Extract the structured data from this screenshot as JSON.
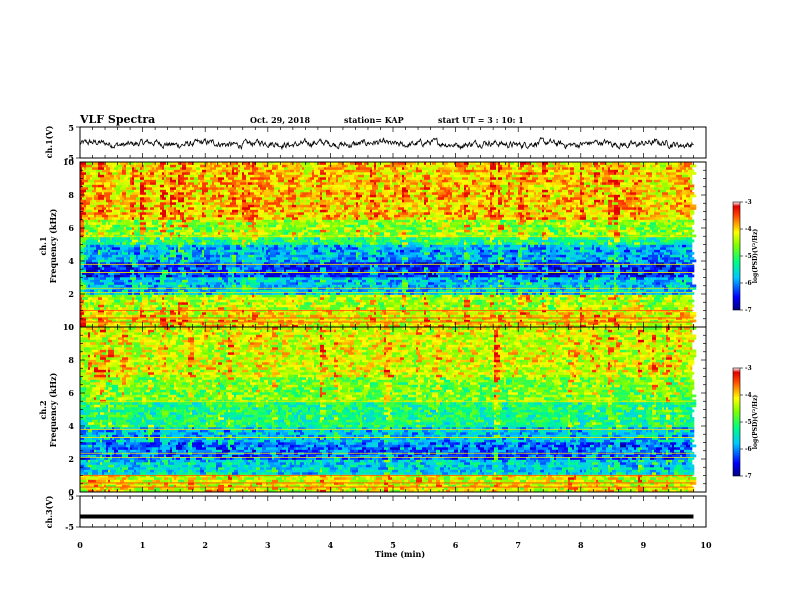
{
  "header": {
    "title": "VLF Spectra",
    "date": "Oct. 29, 2018",
    "station": "station= KAP",
    "start": "start  UT =   3  : 10: 1"
  },
  "chart_data": [
    {
      "type": "line",
      "panel": "ch1-waveform",
      "ylabel": "ch.1(V)",
      "yticks": [
        "5",
        "-5"
      ],
      "ylim": [
        -5,
        5
      ],
      "xlim": [
        0,
        10
      ],
      "note": "noisy waveform, amplitude roughly -3 to 2 V"
    },
    {
      "type": "heatmap",
      "panel": "ch1-spectrogram",
      "ylabel": "ch.1\nFrequency (kHz)",
      "ylabel_line1": "ch.1",
      "ylabel_line2": "Frequency (kHz)",
      "yticks": [
        "0",
        "2",
        "4",
        "6",
        "8",
        "10"
      ],
      "ylim": [
        0,
        10
      ],
      "xlim": [
        0,
        9.8
      ],
      "colorbar": {
        "label": "log(PSD)(V²/Hz)",
        "ticks": [
          "-3",
          "-4",
          "-5",
          "-6",
          "-7"
        ],
        "range": [
          -7,
          -3
        ]
      },
      "bands": [
        {
          "from": 0,
          "to": 1,
          "level": -4.2
        },
        {
          "from": 1,
          "to": 2,
          "level": -4.5
        },
        {
          "from": 2,
          "to": 3,
          "level": -5.8
        },
        {
          "from": 3,
          "to": 4,
          "level": -6.4
        },
        {
          "from": 4,
          "to": 5,
          "level": -5.9
        },
        {
          "from": 5,
          "to": 5.5,
          "level": -5.2
        },
        {
          "from": 5.5,
          "to": 6.5,
          "level": -4.6
        },
        {
          "from": 6.5,
          "to": 10,
          "level": -4.0
        }
      ]
    },
    {
      "type": "heatmap",
      "panel": "ch2-spectrogram",
      "ylabel_line1": "ch.2",
      "ylabel_line2": "Frequency (kHz)",
      "yticks": [
        "0",
        "2",
        "4",
        "6",
        "8",
        "10"
      ],
      "ylim": [
        0,
        10
      ],
      "xlim": [
        0,
        9.8
      ],
      "colorbar": {
        "label": "log(PSD)(V²/Hz)",
        "ticks": [
          "-3",
          "-4",
          "-5",
          "-6",
          "-7"
        ],
        "range": [
          -7,
          -3
        ]
      },
      "bands": [
        {
          "from": 0,
          "to": 1,
          "level": -4.3
        },
        {
          "from": 1,
          "to": 2,
          "level": -5.7
        },
        {
          "from": 2,
          "to": 3,
          "level": -6.2
        },
        {
          "from": 3,
          "to": 4,
          "level": -5.8
        },
        {
          "from": 4,
          "to": 5.5,
          "level": -5.2
        },
        {
          "from": 5.5,
          "to": 7,
          "level": -4.7
        },
        {
          "from": 7,
          "to": 10,
          "level": -4.3
        }
      ]
    },
    {
      "type": "line",
      "panel": "ch3-waveform",
      "ylabel": "ch.3(V)",
      "yticks": [
        "5",
        "-5"
      ],
      "ylim": [
        -5,
        5
      ],
      "xlim": [
        0,
        10
      ],
      "x": [
        0,
        9.8
      ],
      "y": [
        -1.6,
        -1.6
      ]
    }
  ],
  "xaxis": {
    "label": "Time  (min)",
    "ticks": [
      "0",
      "1",
      "2",
      "3",
      "4",
      "5",
      "6",
      "7",
      "8",
      "9",
      "10"
    ],
    "xlim": [
      0,
      10
    ]
  }
}
